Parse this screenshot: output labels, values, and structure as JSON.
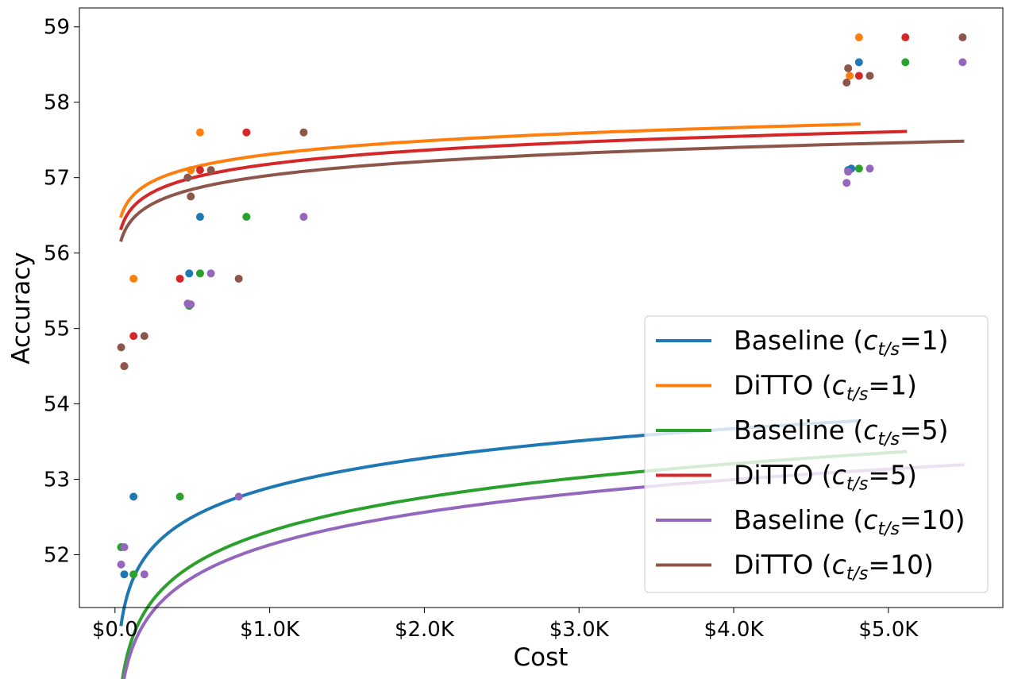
{
  "chart_data": {
    "type": "scatter",
    "xlabel": "Cost",
    "ylabel": "Accuracy",
    "xlim": [
      -230,
      5740
    ],
    "ylim": [
      51.3,
      59.25
    ],
    "x_ticks": [
      0,
      1000,
      2000,
      3000,
      4000,
      5000
    ],
    "x_tick_labels": [
      "$0.0",
      "$1.0K",
      "$2.0K",
      "$3.0K",
      "$4.0K",
      "$5.0K"
    ],
    "y_ticks": [
      52,
      53,
      54,
      55,
      56,
      57,
      58,
      59
    ],
    "y_tick_labels": [
      "52",
      "53",
      "54",
      "55",
      "56",
      "57",
      "58",
      "59"
    ],
    "grid": false,
    "legend_position": "bottom-right",
    "series": [
      {
        "name": "Baseline (c_t/s=1)",
        "legend": {
          "prefix": "Baseline (",
          "c": "c",
          "sub": "t/s",
          "suffix": "=1)"
        },
        "color": "#1f77b4",
        "points": [
          [
            40,
            52.1
          ],
          [
            60,
            51.74
          ],
          [
            120,
            52.77
          ],
          [
            480,
            55.3
          ],
          [
            480,
            55.73
          ],
          [
            550,
            56.48
          ],
          [
            4740,
            57.1
          ],
          [
            4760,
            57.12
          ],
          [
            4810,
            58.53
          ]
        ],
        "fit": {
          "a": 52.89,
          "b": 0.564,
          "x0": 40,
          "x1": 4810
        }
      },
      {
        "name": "DiTTO (c_t/s=1)",
        "legend": {
          "prefix": "DiTTO (",
          "c": "c",
          "sub": "t/s",
          "suffix": "=1)"
        },
        "color": "#ff7f0e",
        "points": [
          [
            60,
            54.5
          ],
          [
            120,
            55.66
          ],
          [
            490,
            57.1
          ],
          [
            550,
            57.6
          ],
          [
            4750,
            58.35
          ],
          [
            4810,
            58.86
          ]
        ],
        "fit": {
          "a": 57.31,
          "b": 0.2544,
          "x0": 40,
          "x1": 4810
        }
      },
      {
        "name": "Baseline (c_t/s=5)",
        "legend": {
          "prefix": "Baseline (",
          "c": "c",
          "sub": "t/s",
          "suffix": "=5)"
        },
        "color": "#2ca02c",
        "points": [
          [
            40,
            52.1
          ],
          [
            120,
            51.74
          ],
          [
            420,
            52.77
          ],
          [
            480,
            55.3
          ],
          [
            550,
            55.73
          ],
          [
            850,
            56.48
          ],
          [
            4740,
            57.08
          ],
          [
            4810,
            57.12
          ],
          [
            5110,
            58.53
          ]
        ],
        "fit": {
          "a": 52.31,
          "b": 0.6475,
          "x0": 40,
          "x1": 5110
        }
      },
      {
        "name": "DiTTO (c_t/s=5)",
        "legend": {
          "prefix": "DiTTO (",
          "c": "c",
          "sub": "t/s",
          "suffix": "=5)"
        },
        "color": "#d62728",
        "points": [
          [
            60,
            54.5
          ],
          [
            120,
            54.9
          ],
          [
            420,
            55.66
          ],
          [
            550,
            57.1
          ],
          [
            850,
            57.6
          ],
          [
            4810,
            58.35
          ],
          [
            5110,
            58.86
          ]
        ],
        "fit": {
          "a": 57.18,
          "b": 0.2645,
          "x0": 40,
          "x1": 5110
        }
      },
      {
        "name": "Baseline (c_t/s=10)",
        "legend": {
          "prefix": "Baseline (",
          "c": "c",
          "sub": "t/s",
          "suffix": "=10)"
        },
        "color": "#9467bd",
        "points": [
          [
            40,
            51.87
          ],
          [
            60,
            52.1
          ],
          [
            190,
            51.74
          ],
          [
            470,
            55.33
          ],
          [
            490,
            55.32
          ],
          [
            620,
            55.73
          ],
          [
            800,
            52.77
          ],
          [
            1220,
            56.48
          ],
          [
            4730,
            56.93
          ],
          [
            4740,
            57.08
          ],
          [
            4880,
            57.12
          ],
          [
            5480,
            58.53
          ]
        ],
        "fit": {
          "a": 52.13,
          "b": 0.6249,
          "x0": 40,
          "x1": 5480
        }
      },
      {
        "name": "DiTTO (c_t/s=10)",
        "legend": {
          "prefix": "DiTTO (",
          "c": "c",
          "sub": "t/s",
          "suffix": "=10)"
        },
        "color": "#8c564b",
        "points": [
          [
            40,
            54.75
          ],
          [
            60,
            54.5
          ],
          [
            190,
            54.9
          ],
          [
            470,
            57.0
          ],
          [
            490,
            56.75
          ],
          [
            620,
            57.1
          ],
          [
            800,
            55.66
          ],
          [
            1220,
            57.6
          ],
          [
            4730,
            58.26
          ],
          [
            4740,
            58.45
          ],
          [
            4880,
            58.35
          ],
          [
            5480,
            58.86
          ]
        ],
        "fit": {
          "a": 57.03,
          "b": 0.2666,
          "x0": 40,
          "x1": 5480
        }
      }
    ]
  }
}
